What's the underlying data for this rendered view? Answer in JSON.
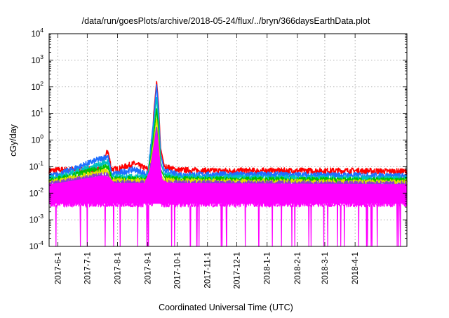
{
  "chart_data": {
    "type": "line",
    "title": "/data/run/goesPlots/archive/2018-05-24/flux/../bryn/366daysEarthData.plot",
    "xlabel": "Coordinated Universal Time (UTC)",
    "ylabel": "cGy/day",
    "yscale": "log",
    "ylim": [
      0.0001,
      10000
    ],
    "xlim": [
      "2017-05-23",
      "2018-05-24"
    ],
    "y_ticks": [
      {
        "value": 0.0001,
        "base": "10",
        "exp": "-4"
      },
      {
        "value": 0.001,
        "base": "10",
        "exp": "-3"
      },
      {
        "value": 0.01,
        "base": "10",
        "exp": "-2"
      },
      {
        "value": 0.1,
        "base": "10",
        "exp": "-1"
      },
      {
        "value": 1,
        "base": "10",
        "exp": "0"
      },
      {
        "value": 10,
        "base": "10",
        "exp": "1"
      },
      {
        "value": 100,
        "base": "10",
        "exp": "2"
      },
      {
        "value": 1000,
        "base": "10",
        "exp": "3"
      },
      {
        "value": 10000,
        "base": "10",
        "exp": "4"
      }
    ],
    "x_ticks": [
      {
        "label": "2017-6-1",
        "date": "2017-06-01"
      },
      {
        "label": "2017-7-1",
        "date": "2017-07-01"
      },
      {
        "label": "2017-8-1",
        "date": "2017-08-01"
      },
      {
        "label": "2017-9-1",
        "date": "2017-09-01"
      },
      {
        "label": "2017-10-1",
        "date": "2017-10-01"
      },
      {
        "label": "2017-11-1",
        "date": "2017-11-01"
      },
      {
        "label": "2017-12-1",
        "date": "2017-12-01"
      },
      {
        "label": "2018-1-1",
        "date": "2018-01-01"
      },
      {
        "label": "2018-2-1",
        "date": "2018-02-01"
      },
      {
        "label": "2018-3-1",
        "date": "2018-03-01"
      },
      {
        "label": "2018-4-1",
        "date": "2018-04-01"
      }
    ],
    "grid": true,
    "colors": [
      "#ff0000",
      "#1e6fff",
      "#00c0c0",
      "#00c000",
      "#e0e000",
      "#8a3fd0",
      "#ff00ff"
    ],
    "series": [
      {
        "color": "#ff0000",
        "values": [
          [
            "2017-05-23",
            0.07
          ],
          [
            "2017-06-01",
            0.075
          ],
          [
            "2017-07-14",
            0.08
          ],
          [
            "2017-07-22",
            0.4
          ],
          [
            "2017-07-26",
            0.08
          ],
          [
            "2017-08-01",
            0.08
          ],
          [
            "2017-08-18",
            0.13
          ],
          [
            "2017-09-01",
            0.08
          ],
          [
            "2017-09-05",
            0.13
          ],
          [
            "2017-09-07",
            10
          ],
          [
            "2017-09-10",
            160
          ],
          [
            "2017-09-12",
            20
          ],
          [
            "2017-09-14",
            0.5
          ],
          [
            "2017-09-18",
            0.1
          ],
          [
            "2017-10-01",
            0.075
          ],
          [
            "2017-11-01",
            0.07
          ],
          [
            "2017-12-01",
            0.07
          ],
          [
            "2018-01-01",
            0.07
          ],
          [
            "2018-02-01",
            0.07
          ],
          [
            "2018-03-01",
            0.07
          ],
          [
            "2018-04-01",
            0.07
          ],
          [
            "2018-05-24",
            0.065
          ]
        ]
      },
      {
        "color": "#1e6fff",
        "values": [
          [
            "2017-05-23",
            0.045
          ],
          [
            "2017-06-01",
            0.05
          ],
          [
            "2017-07-22",
            0.25
          ],
          [
            "2017-07-26",
            0.05
          ],
          [
            "2017-08-18",
            0.08
          ],
          [
            "2017-09-01",
            0.05
          ],
          [
            "2017-09-07",
            6
          ],
          [
            "2017-09-10",
            120
          ],
          [
            "2017-09-12",
            12
          ],
          [
            "2017-09-14",
            0.3
          ],
          [
            "2017-09-18",
            0.07
          ],
          [
            "2017-10-01",
            0.05
          ],
          [
            "2018-01-01",
            0.05
          ],
          [
            "2018-05-24",
            0.045
          ]
        ]
      },
      {
        "color": "#00c0c0",
        "values": [
          [
            "2017-05-23",
            0.035
          ],
          [
            "2017-06-01",
            0.04
          ],
          [
            "2017-07-22",
            0.15
          ],
          [
            "2017-07-26",
            0.04
          ],
          [
            "2017-09-01",
            0.04
          ],
          [
            "2017-09-07",
            3
          ],
          [
            "2017-09-10",
            40
          ],
          [
            "2017-09-12",
            5
          ],
          [
            "2017-09-14",
            0.15
          ],
          [
            "2017-09-18",
            0.05
          ],
          [
            "2017-10-01",
            0.04
          ],
          [
            "2018-05-24",
            0.035
          ]
        ]
      },
      {
        "color": "#00c000",
        "values": [
          [
            "2017-05-23",
            0.03
          ],
          [
            "2017-06-01",
            0.033
          ],
          [
            "2017-07-22",
            0.1
          ],
          [
            "2017-07-26",
            0.033
          ],
          [
            "2017-09-01",
            0.033
          ],
          [
            "2017-09-07",
            1.5
          ],
          [
            "2017-09-10",
            15
          ],
          [
            "2017-09-12",
            2
          ],
          [
            "2017-09-14",
            0.08
          ],
          [
            "2017-09-18",
            0.04
          ],
          [
            "2017-10-01",
            0.033
          ],
          [
            "2018-05-24",
            0.03
          ]
        ]
      },
      {
        "color": "#e0e000",
        "values": [
          [
            "2017-05-23",
            0.025
          ],
          [
            "2017-06-01",
            0.028
          ],
          [
            "2017-07-22",
            0.07
          ],
          [
            "2017-07-26",
            0.028
          ],
          [
            "2017-09-01",
            0.028
          ],
          [
            "2017-09-07",
            0.8
          ],
          [
            "2017-09-10",
            6
          ],
          [
            "2017-09-12",
            1
          ],
          [
            "2017-09-14",
            0.05
          ],
          [
            "2017-09-18",
            0.03
          ],
          [
            "2017-10-01",
            0.028
          ],
          [
            "2018-05-24",
            0.025
          ]
        ]
      },
      {
        "color": "#8a3fd0",
        "values": [
          [
            "2017-05-23",
            0.022
          ],
          [
            "2017-06-01",
            0.024
          ],
          [
            "2017-07-22",
            0.05
          ],
          [
            "2017-07-26",
            0.024
          ],
          [
            "2017-09-01",
            0.024
          ],
          [
            "2017-09-07",
            0.5
          ],
          [
            "2017-09-10",
            3
          ],
          [
            "2017-09-12",
            0.5
          ],
          [
            "2017-09-14",
            0.04
          ],
          [
            "2017-09-18",
            0.025
          ],
          [
            "2017-10-01",
            0.024
          ],
          [
            "2018-05-24",
            0.022
          ]
        ]
      },
      {
        "color": "#ff00ff",
        "values": [
          [
            "2017-05-23",
            0.004
          ],
          [
            "2017-06-01",
            0.004
          ],
          [
            "2017-09-06",
            0.004
          ],
          [
            "2017-09-10",
            0.3
          ],
          [
            "2017-09-14",
            0.004
          ],
          [
            "2018-05-24",
            0.004
          ]
        ]
      }
    ]
  }
}
